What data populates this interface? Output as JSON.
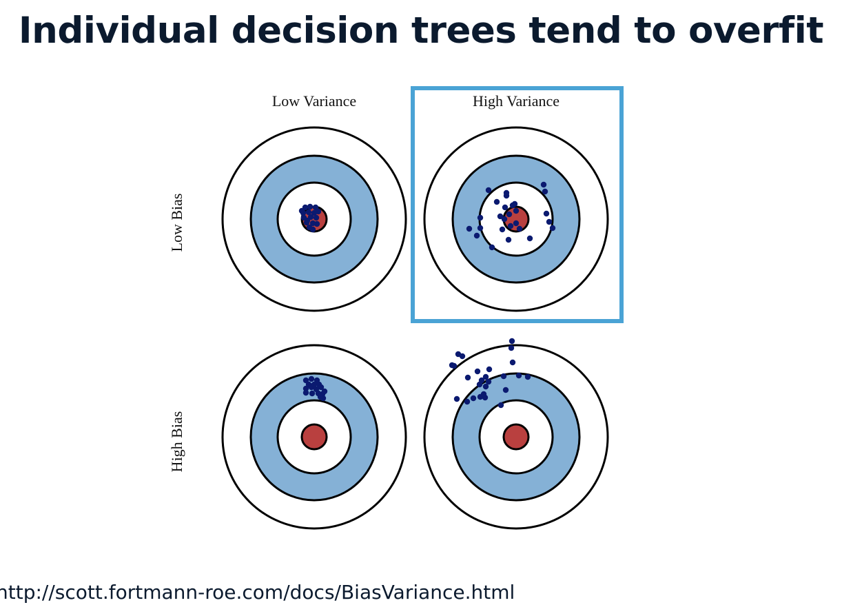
{
  "slide": {
    "title": "Individual decision trees tend to overfit",
    "source_url": "http://scott.fortmann-roe.com/docs/BiasVariance.html"
  },
  "figure": {
    "column_labels": [
      "Low Variance",
      "High Variance"
    ],
    "row_labels": [
      "Low Bias",
      "High Bias"
    ],
    "highlighted_panel": "Low Bias / High Variance",
    "colors": {
      "highlight_border": "#4aa3d5",
      "ring_blue": "#85b1d6",
      "bullseye_red": "#b9403f",
      "point": "#0b1a70",
      "ring_stroke": "#000000"
    }
  }
}
